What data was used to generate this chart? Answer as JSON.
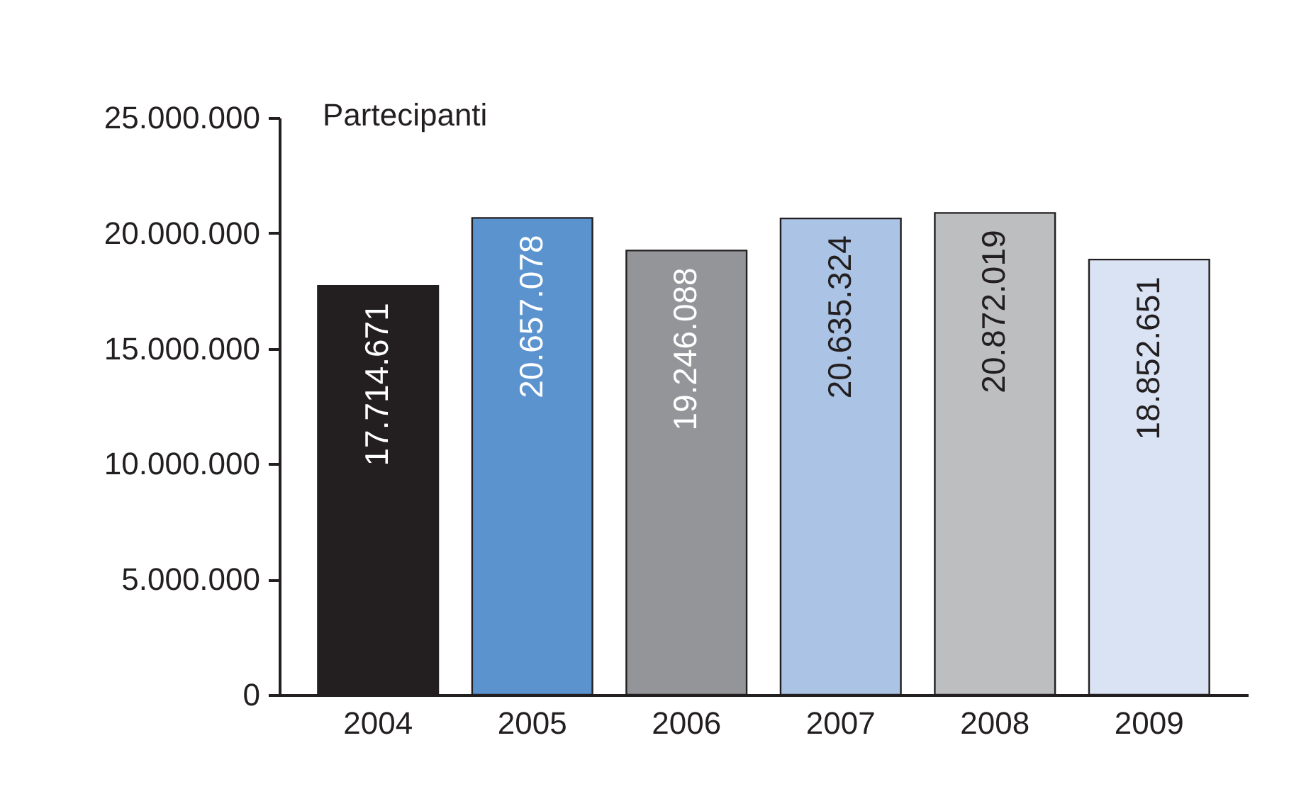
{
  "chart_data": {
    "type": "bar",
    "ylabel": "Partecipanti",
    "categories": [
      "2004",
      "2005",
      "2006",
      "2007",
      "2008",
      "2009"
    ],
    "values": [
      17714671,
      20657078,
      19246088,
      20635324,
      20872019,
      18852651
    ],
    "value_labels": [
      "17.714.671",
      "20.657.078",
      "19.246.088",
      "20.635.324",
      "20.872.019",
      "18.852.651"
    ],
    "colors": [
      "#231f20",
      "#5b93cf",
      "#939598",
      "#abc3e5",
      "#bcbec0",
      "#d9e3f3"
    ],
    "ylim": [
      0,
      25000000
    ],
    "yticks": [
      0,
      {
        "value": 5000000,
        "label": "5.000.000"
      },
      {
        "value": 10000000,
        "label": "10.000.000"
      },
      {
        "value": 15000000,
        "label": "15.000.000"
      },
      {
        "value": 20000000,
        "label": "20.000.000"
      },
      {
        "value": 25000000,
        "label": "25.000.000"
      }
    ],
    "grid": false
  }
}
